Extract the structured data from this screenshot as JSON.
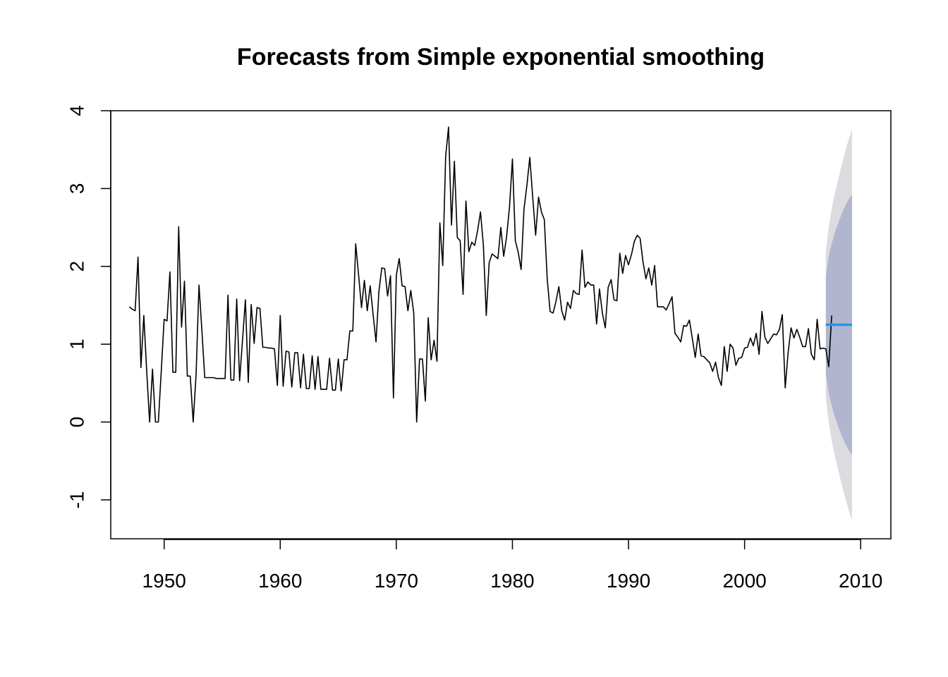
{
  "chart_data": {
    "type": "line",
    "title": "Forecasts from Simple exponential smoothing",
    "xlabel": "",
    "ylabel": "",
    "xlim": [
      1945.4,
      2012.6
    ],
    "ylim": [
      -1.5,
      4.0
    ],
    "x_ticks": [
      1950,
      1960,
      1970,
      1980,
      1990,
      2000,
      2010
    ],
    "x_tick_labels": [
      "1950",
      "1960",
      "1970",
      "1980",
      "1990",
      "2000",
      "2010"
    ],
    "y_ticks": [
      -1,
      0,
      1,
      2,
      3,
      4
    ],
    "y_tick_labels": [
      "-1",
      "0",
      "1",
      "2",
      "3",
      "4"
    ],
    "grid": false,
    "legend": "none",
    "series": [
      {
        "type": "line",
        "color": "#000000",
        "start": 1947.0,
        "step": 0.25,
        "values": [
          1.48,
          1.45,
          1.43,
          2.12,
          0.7,
          1.37,
          0.65,
          0.0,
          0.68,
          0.0,
          0.0,
          0.65,
          1.32,
          1.3,
          1.93,
          0.64,
          0.64,
          2.51,
          1.22,
          1.81,
          0.59,
          0.59,
          0.0,
          0.61,
          1.76,
          1.18,
          0.57,
          0.57,
          0.57,
          0.57,
          0.56,
          0.56,
          0.56,
          0.56,
          1.63,
          0.54,
          0.54,
          1.58,
          0.53,
          1.05,
          1.57,
          0.51,
          1.51,
          1.01,
          1.47,
          1.46,
          0.96,
          0.96,
          0.95,
          0.95,
          0.94,
          0.47,
          1.37,
          0.46,
          0.91,
          0.9,
          0.45,
          0.89,
          0.89,
          0.44,
          0.87,
          0.43,
          0.43,
          0.85,
          0.42,
          0.84,
          0.42,
          0.42,
          0.42,
          0.82,
          0.41,
          0.41,
          0.81,
          0.4,
          0.8,
          0.8,
          1.17,
          1.17,
          2.29,
          1.89,
          1.47,
          1.82,
          1.43,
          1.75,
          1.38,
          1.03,
          1.68,
          1.98,
          1.97,
          1.62,
          1.88,
          0.31,
          1.89,
          2.1,
          1.75,
          1.74,
          1.43,
          1.69,
          1.4,
          0.0,
          0.81,
          0.81,
          0.27,
          1.34,
          0.8,
          1.05,
          0.78,
          2.56,
          2.01,
          3.41,
          3.79,
          2.53,
          3.35,
          2.37,
          2.33,
          1.64,
          2.84,
          2.19,
          2.31,
          2.27,
          2.46,
          2.7,
          2.27,
          1.37,
          2.05,
          2.16,
          2.13,
          2.1,
          2.5,
          2.13,
          2.38,
          2.76,
          3.38,
          2.33,
          2.18,
          1.96,
          2.74,
          3.04,
          3.4,
          2.88,
          2.4,
          2.89,
          2.7,
          2.6,
          1.84,
          1.42,
          1.4,
          1.55,
          1.74,
          1.43,
          1.31,
          1.54,
          1.46,
          1.69,
          1.65,
          1.64,
          2.21,
          1.73,
          1.8,
          1.76,
          1.76,
          1.26,
          1.71,
          1.4,
          1.21,
          1.73,
          1.83,
          1.57,
          1.56,
          2.17,
          1.91,
          2.14,
          2.02,
          2.15,
          2.32,
          2.4,
          2.36,
          2.06,
          1.84,
          1.98,
          1.76,
          2.01,
          1.48,
          1.48,
          1.48,
          1.44,
          1.52,
          1.61,
          1.14,
          1.09,
          1.03,
          1.24,
          1.23,
          1.31,
          1.07,
          0.83,
          1.13,
          0.85,
          0.84,
          0.8,
          0.76,
          0.65,
          0.77,
          0.57,
          0.47,
          0.97,
          0.65,
          1.0,
          0.95,
          0.73,
          0.82,
          0.83,
          0.95,
          0.96,
          1.08,
          0.98,
          1.14,
          0.87,
          1.42,
          1.09,
          1.01,
          1.07,
          1.13,
          1.12,
          1.19,
          1.38,
          0.44,
          0.89,
          1.21,
          1.08,
          1.19,
          1.09,
          0.97,
          0.97,
          1.2,
          0.87,
          0.8,
          1.32,
          0.94,
          0.95,
          0.94,
          0.71,
          1.37
        ]
      }
    ],
    "forecast": {
      "x": [
        2007.0,
        2007.25,
        2007.5,
        2007.75,
        2008.0,
        2008.25,
        2008.5,
        2008.75,
        2009.0,
        2009.25
      ],
      "point": [
        1.25,
        1.25,
        1.25,
        1.25,
        1.25,
        1.25,
        1.25,
        1.25,
        1.25,
        1.25
      ],
      "lo80": [
        0.63,
        0.37,
        0.21,
        0.08,
        -0.03,
        -0.13,
        -0.22,
        -0.3,
        -0.37,
        -0.42
      ],
      "hi80": [
        1.87,
        2.13,
        2.29,
        2.42,
        2.53,
        2.63,
        2.72,
        2.8,
        2.87,
        2.92
      ],
      "lo95": [
        0.3,
        0.0,
        -0.24,
        -0.42,
        -0.58,
        -0.73,
        -0.88,
        -1.02,
        -1.15,
        -1.26
      ],
      "hi95": [
        2.2,
        2.5,
        2.74,
        2.92,
        3.08,
        3.23,
        3.38,
        3.52,
        3.65,
        3.76
      ],
      "point_color": "#2297e6",
      "band80_color": "#b1b5ce",
      "band95_color": "#dbdbe0"
    }
  }
}
